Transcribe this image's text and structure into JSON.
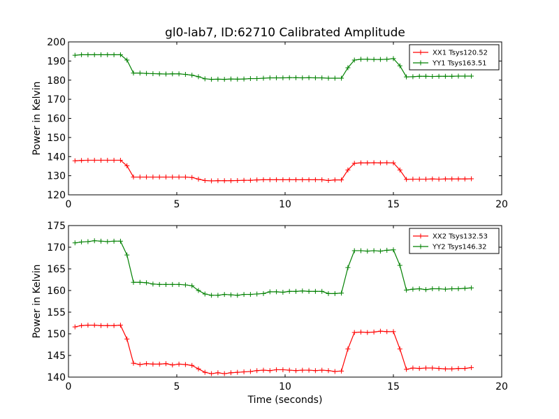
{
  "chart_data": [
    {
      "type": "line",
      "title": "gl0-lab7, ID:62710 Calibrated Amplitude",
      "xlabel": "",
      "ylabel": "Power in Kelvin",
      "xlim": [
        0,
        20
      ],
      "ylim": [
        120,
        200
      ],
      "xticks": [
        0,
        5,
        10,
        15,
        20
      ],
      "yticks": [
        120,
        130,
        140,
        150,
        160,
        170,
        180,
        190,
        200
      ],
      "legend_position": "top-right",
      "grid": false,
      "x": [
        0.3,
        0.6,
        0.9,
        1.2,
        1.5,
        1.8,
        2.1,
        2.4,
        2.7,
        3.0,
        3.3,
        3.6,
        3.9,
        4.2,
        4.5,
        4.8,
        5.1,
        5.4,
        5.7,
        6.0,
        6.3,
        6.6,
        6.9,
        7.2,
        7.5,
        7.8,
        8.1,
        8.4,
        8.7,
        9.0,
        9.3,
        9.6,
        9.9,
        10.2,
        10.5,
        10.8,
        11.1,
        11.4,
        11.7,
        12.0,
        12.3,
        12.6,
        12.9,
        13.2,
        13.5,
        13.8,
        14.1,
        14.4,
        14.7,
        15.0,
        15.3,
        15.6,
        15.9,
        16.2,
        16.5,
        16.8,
        17.1,
        17.4,
        17.7,
        18.0,
        18.3,
        18.6
      ],
      "series": [
        {
          "name": "XX1 Tsys120.52",
          "color": "#ff0000",
          "values": [
            137.8,
            138.0,
            138.1,
            138.1,
            138.1,
            138.1,
            138.1,
            138.1,
            135.2,
            129.3,
            129.3,
            129.3,
            129.3,
            129.3,
            129.3,
            129.3,
            129.3,
            129.3,
            129.1,
            128.2,
            127.5,
            127.3,
            127.4,
            127.4,
            127.4,
            127.5,
            127.6,
            127.6,
            127.8,
            127.9,
            127.9,
            127.9,
            127.9,
            127.9,
            127.9,
            127.9,
            127.9,
            127.9,
            127.9,
            127.5,
            127.8,
            127.8,
            133.0,
            136.5,
            136.7,
            136.7,
            136.8,
            136.7,
            136.8,
            136.7,
            133.0,
            128.1,
            128.2,
            128.2,
            128.2,
            128.3,
            128.2,
            128.3,
            128.3,
            128.3,
            128.3,
            128.4
          ]
        },
        {
          "name": "YY1 Tsys163.51",
          "color": "#008000",
          "values": [
            193.0,
            193.3,
            193.3,
            193.3,
            193.3,
            193.3,
            193.3,
            193.3,
            190.5,
            183.7,
            183.7,
            183.5,
            183.4,
            183.3,
            183.2,
            183.3,
            183.3,
            183.0,
            182.6,
            181.8,
            180.7,
            180.4,
            180.5,
            180.4,
            180.6,
            180.5,
            180.6,
            180.8,
            180.8,
            181.0,
            181.2,
            181.2,
            181.2,
            181.3,
            181.3,
            181.2,
            181.3,
            181.2,
            181.2,
            181.0,
            181.0,
            181.0,
            186.5,
            190.5,
            190.9,
            190.9,
            190.8,
            190.8,
            190.9,
            191.3,
            187.5,
            181.7,
            181.8,
            182.0,
            182.0,
            181.9,
            182.0,
            182.0,
            182.0,
            182.1,
            182.1,
            182.1
          ]
        }
      ]
    },
    {
      "type": "line",
      "title": "",
      "xlabel": "Time (seconds)",
      "ylabel": "Power in Kelvin",
      "xlim": [
        0,
        20
      ],
      "ylim": [
        140,
        175
      ],
      "xticks": [
        0,
        5,
        10,
        15,
        20
      ],
      "yticks": [
        140,
        145,
        150,
        155,
        160,
        165,
        170,
        175
      ],
      "legend_position": "top-right",
      "grid": false,
      "x": [
        0.3,
        0.6,
        0.9,
        1.2,
        1.5,
        1.8,
        2.1,
        2.4,
        2.7,
        3.0,
        3.3,
        3.6,
        3.9,
        4.2,
        4.5,
        4.8,
        5.1,
        5.4,
        5.7,
        6.0,
        6.3,
        6.6,
        6.9,
        7.2,
        7.5,
        7.8,
        8.1,
        8.4,
        8.7,
        9.0,
        9.3,
        9.6,
        9.9,
        10.2,
        10.5,
        10.8,
        11.1,
        11.4,
        11.7,
        12.0,
        12.3,
        12.6,
        12.9,
        13.2,
        13.5,
        13.8,
        14.1,
        14.4,
        14.7,
        15.0,
        15.3,
        15.6,
        15.9,
        16.2,
        16.5,
        16.8,
        17.1,
        17.4,
        17.7,
        18.0,
        18.3,
        18.6
      ],
      "series": [
        {
          "name": "XX2 Tsys132.53",
          "color": "#ff0000",
          "values": [
            151.6,
            151.9,
            152.0,
            152.0,
            151.9,
            151.9,
            151.9,
            152.0,
            148.8,
            143.2,
            142.9,
            143.1,
            143.0,
            143.0,
            143.1,
            142.8,
            143.0,
            142.9,
            142.7,
            141.9,
            141.1,
            140.8,
            141.0,
            140.8,
            141.0,
            141.1,
            141.2,
            141.3,
            141.5,
            141.6,
            141.5,
            141.7,
            141.7,
            141.6,
            141.5,
            141.6,
            141.6,
            141.5,
            141.6,
            141.5,
            141.3,
            141.4,
            146.5,
            150.3,
            150.4,
            150.3,
            150.4,
            150.6,
            150.5,
            150.5,
            146.5,
            141.8,
            142.1,
            142.0,
            142.1,
            142.1,
            142.0,
            141.9,
            141.9,
            142.0,
            142.0,
            142.2
          ]
        },
        {
          "name": "YY2 Tsys146.32",
          "color": "#008000",
          "values": [
            171.0,
            171.2,
            171.3,
            171.5,
            171.4,
            171.3,
            171.4,
            171.4,
            168.2,
            161.9,
            161.9,
            161.8,
            161.5,
            161.4,
            161.4,
            161.4,
            161.4,
            161.3,
            161.1,
            160.0,
            159.2,
            158.9,
            158.9,
            159.1,
            159.0,
            158.9,
            159.1,
            159.1,
            159.2,
            159.3,
            159.7,
            159.7,
            159.6,
            159.8,
            159.8,
            159.9,
            159.8,
            159.8,
            159.8,
            159.3,
            159.3,
            159.4,
            165.3,
            169.2,
            169.2,
            169.1,
            169.2,
            169.1,
            169.3,
            169.4,
            165.8,
            160.1,
            160.3,
            160.4,
            160.2,
            160.4,
            160.4,
            160.3,
            160.4,
            160.4,
            160.5,
            160.6
          ]
        }
      ]
    }
  ]
}
